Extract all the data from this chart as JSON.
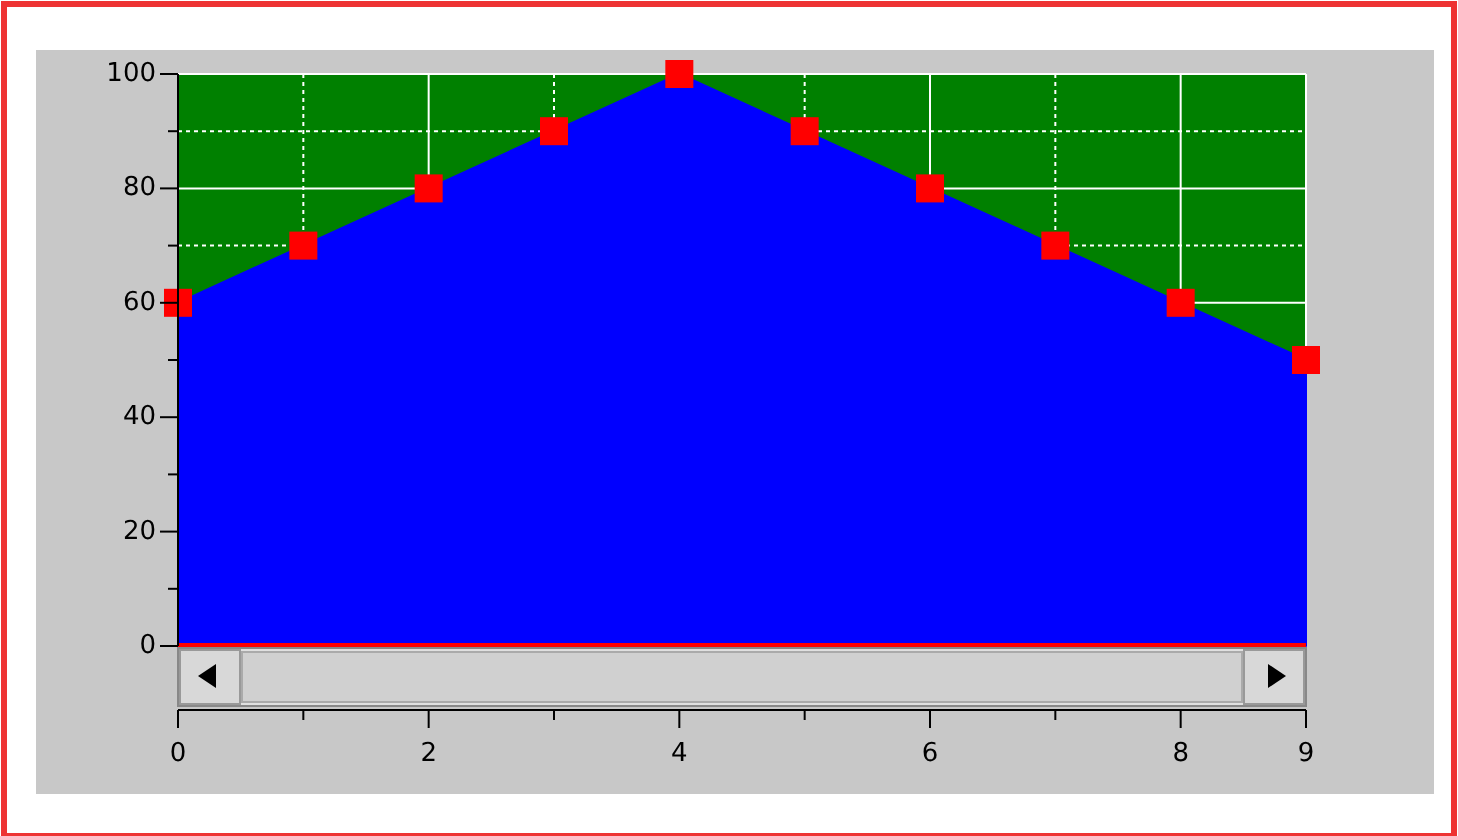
{
  "chart_data": {
    "type": "area",
    "x": [
      0,
      1,
      2,
      3,
      4,
      5,
      6,
      7,
      8,
      9
    ],
    "series": [
      {
        "color": "#0000ff",
        "values": [
          60,
          70,
          80,
          90,
          100,
          90,
          80,
          70,
          60,
          50
        ]
      }
    ],
    "marker": "square",
    "grid": true,
    "xlim": [
      0,
      9
    ],
    "xticks": [
      0,
      {
        "value": 1,
        "label": null
      },
      2,
      {
        "value": 3,
        "label": null
      },
      4,
      {
        "value": 5,
        "label": null
      },
      6,
      {
        "value": 7,
        "label": null
      },
      8,
      9
    ],
    "ylim": [
      0,
      100
    ],
    "yticks": [
      0,
      {
        "value": 10,
        "label": null
      },
      20,
      {
        "value": 30,
        "label": null
      },
      40,
      {
        "value": 50,
        "label": null
      },
      60,
      {
        "value": 70,
        "label": null
      },
      80,
      {
        "value": 90,
        "label": null
      },
      100
    ],
    "ref_lines": [
      {
        "axis": "y",
        "value": 0,
        "color": "#ff0000"
      }
    ]
  }
}
